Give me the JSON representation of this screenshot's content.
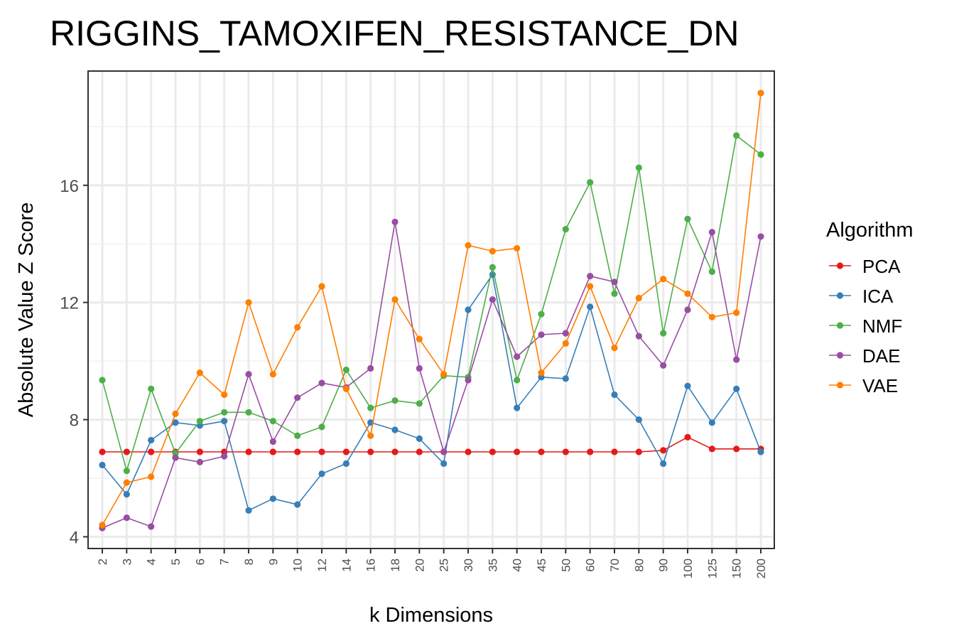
{
  "chart_data": {
    "type": "line",
    "title": "RIGGINS_TAMOXIFEN_RESISTANCE_DN",
    "xlabel": "k Dimensions",
    "ylabel": "Absolute Value Z Score",
    "categories": [
      "2",
      "3",
      "4",
      "5",
      "6",
      "7",
      "8",
      "9",
      "10",
      "12",
      "14",
      "16",
      "18",
      "20",
      "25",
      "30",
      "35",
      "40",
      "45",
      "50",
      "60",
      "70",
      "80",
      "90",
      "100",
      "125",
      "150",
      "200"
    ],
    "yticks": [
      4,
      8,
      12,
      16
    ],
    "ylim": [
      3.6,
      19.9
    ],
    "grid": true,
    "legend": {
      "title": "Algorithm",
      "placement": "right"
    },
    "series": [
      {
        "name": "PCA",
        "color": "#e41a1c",
        "values": [
          6.9,
          6.9,
          6.9,
          6.9,
          6.9,
          6.9,
          6.9,
          6.9,
          6.9,
          6.9,
          6.9,
          6.9,
          6.9,
          6.9,
          6.9,
          6.9,
          6.9,
          6.9,
          6.9,
          6.9,
          6.9,
          6.9,
          6.9,
          6.95,
          7.4,
          7.0,
          7.0,
          7.0
        ]
      },
      {
        "name": "ICA",
        "color": "#377eb8",
        "values": [
          6.45,
          5.45,
          7.3,
          7.9,
          7.8,
          7.95,
          4.9,
          5.3,
          5.1,
          6.15,
          6.5,
          7.9,
          7.65,
          7.35,
          6.5,
          11.75,
          12.95,
          8.4,
          9.45,
          9.4,
          11.85,
          8.85,
          8.0,
          6.5,
          9.15,
          7.9,
          9.05,
          6.9
        ]
      },
      {
        "name": "NMF",
        "color": "#4daf4a",
        "values": [
          9.35,
          6.25,
          9.05,
          6.85,
          7.95,
          8.25,
          8.25,
          7.95,
          7.45,
          7.75,
          9.7,
          8.4,
          8.65,
          8.55,
          9.5,
          9.45,
          13.2,
          9.35,
          11.6,
          14.5,
          16.1,
          12.3,
          16.6,
          10.95,
          14.85,
          13.05,
          17.7,
          17.05
        ]
      },
      {
        "name": "DAE",
        "color": "#984ea3",
        "values": [
          4.3,
          4.65,
          4.35,
          6.7,
          6.55,
          6.75,
          9.55,
          7.25,
          8.75,
          9.25,
          9.1,
          9.75,
          14.75,
          9.75,
          6.9,
          9.35,
          12.1,
          10.15,
          10.9,
          10.95,
          12.9,
          12.7,
          10.85,
          9.85,
          11.75,
          14.4,
          10.05,
          14.25
        ]
      },
      {
        "name": "VAE",
        "color": "#ff7f00",
        "values": [
          4.4,
          5.85,
          6.05,
          8.2,
          9.6,
          8.85,
          12.0,
          9.55,
          11.15,
          12.55,
          9.05,
          7.45,
          12.1,
          10.75,
          9.55,
          13.95,
          13.75,
          13.85,
          9.6,
          10.6,
          12.55,
          10.45,
          12.15,
          12.8,
          12.3,
          11.5,
          11.65,
          19.15
        ]
      }
    ]
  }
}
